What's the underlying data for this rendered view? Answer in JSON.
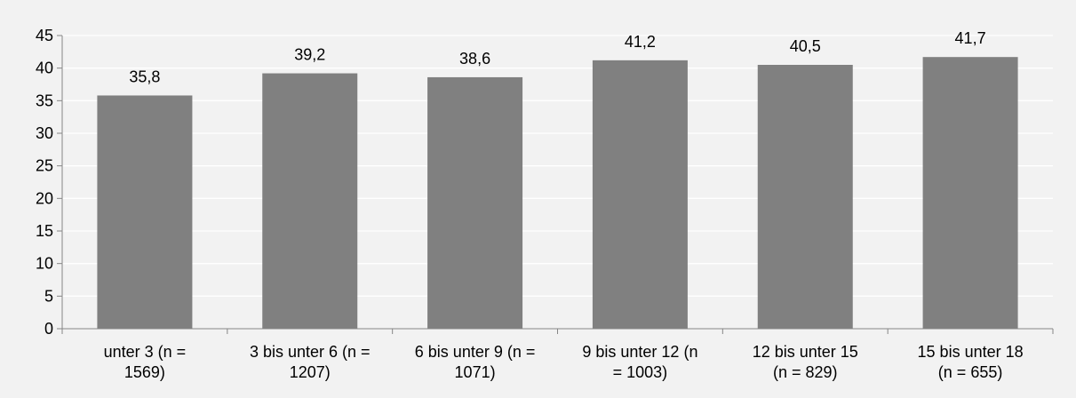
{
  "chart_data": {
    "type": "bar",
    "categories": [
      [
        "unter 3 (n =",
        "1569)"
      ],
      [
        "3 bis unter 6 (n =",
        "1207)"
      ],
      [
        "6 bis unter 9 (n =",
        "1071)"
      ],
      [
        "9 bis unter 12 (n",
        "= 1003)"
      ],
      [
        "12 bis unter 15",
        "(n = 829)"
      ],
      [
        "15 bis unter 18",
        "(n = 655)"
      ]
    ],
    "values": [
      35.8,
      39.2,
      38.6,
      41.2,
      40.5,
      41.7
    ],
    "data_labels": [
      "35,8",
      "39,2",
      "38,6",
      "41,2",
      "40,5",
      "41,7"
    ],
    "yticks": [
      0,
      5,
      10,
      15,
      20,
      25,
      30,
      35,
      40,
      45
    ],
    "ylim": [
      0,
      45
    ],
    "grid": true,
    "legend": "none",
    "bar_color": "#808080",
    "grid_color": "#ffffff",
    "axis_color": "#868686"
  }
}
